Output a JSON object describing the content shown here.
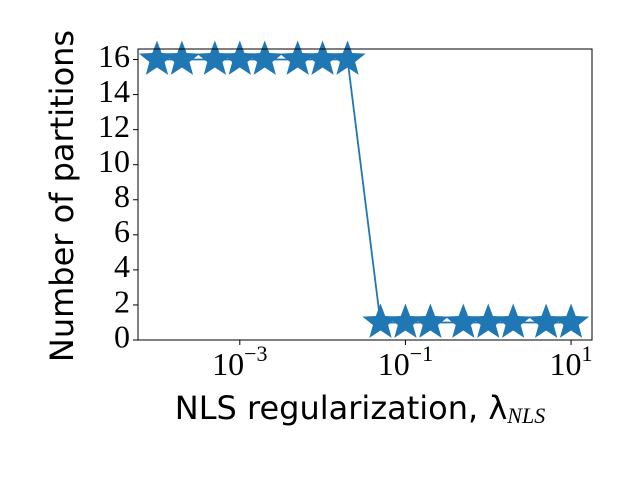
{
  "chart_data": {
    "type": "line",
    "xlabel": "NLS regularization, λ",
    "xlabel_subscript": "NLS",
    "ylabel": "Number of partitions",
    "x": [
      0.0001,
      0.0002,
      0.0005,
      0.001,
      0.002,
      0.005,
      0.01,
      0.02,
      0.05,
      0.1,
      0.2,
      0.5,
      1,
      2,
      5,
      10
    ],
    "series": [
      {
        "color": "#1f77b4",
        "marker": "star",
        "values": [
          16,
          16,
          16,
          16,
          16,
          16,
          16,
          16,
          1,
          1,
          1,
          1,
          1,
          1,
          1,
          1
        ]
      }
    ],
    "xscale": "log",
    "xlim": [
      5.9e-05,
      17.9
    ],
    "xticks": [
      {
        "value": 0.001,
        "label": "10",
        "exponent": "−3"
      },
      {
        "value": 0.1,
        "label": "10",
        "exponent": "−1"
      },
      {
        "value": 10,
        "label": "10",
        "exponent": "1"
      }
    ],
    "ylim": [
      0,
      16.6
    ],
    "yticks": [
      0,
      2,
      4,
      6,
      8,
      10,
      12,
      14,
      16
    ],
    "grid": false
  }
}
